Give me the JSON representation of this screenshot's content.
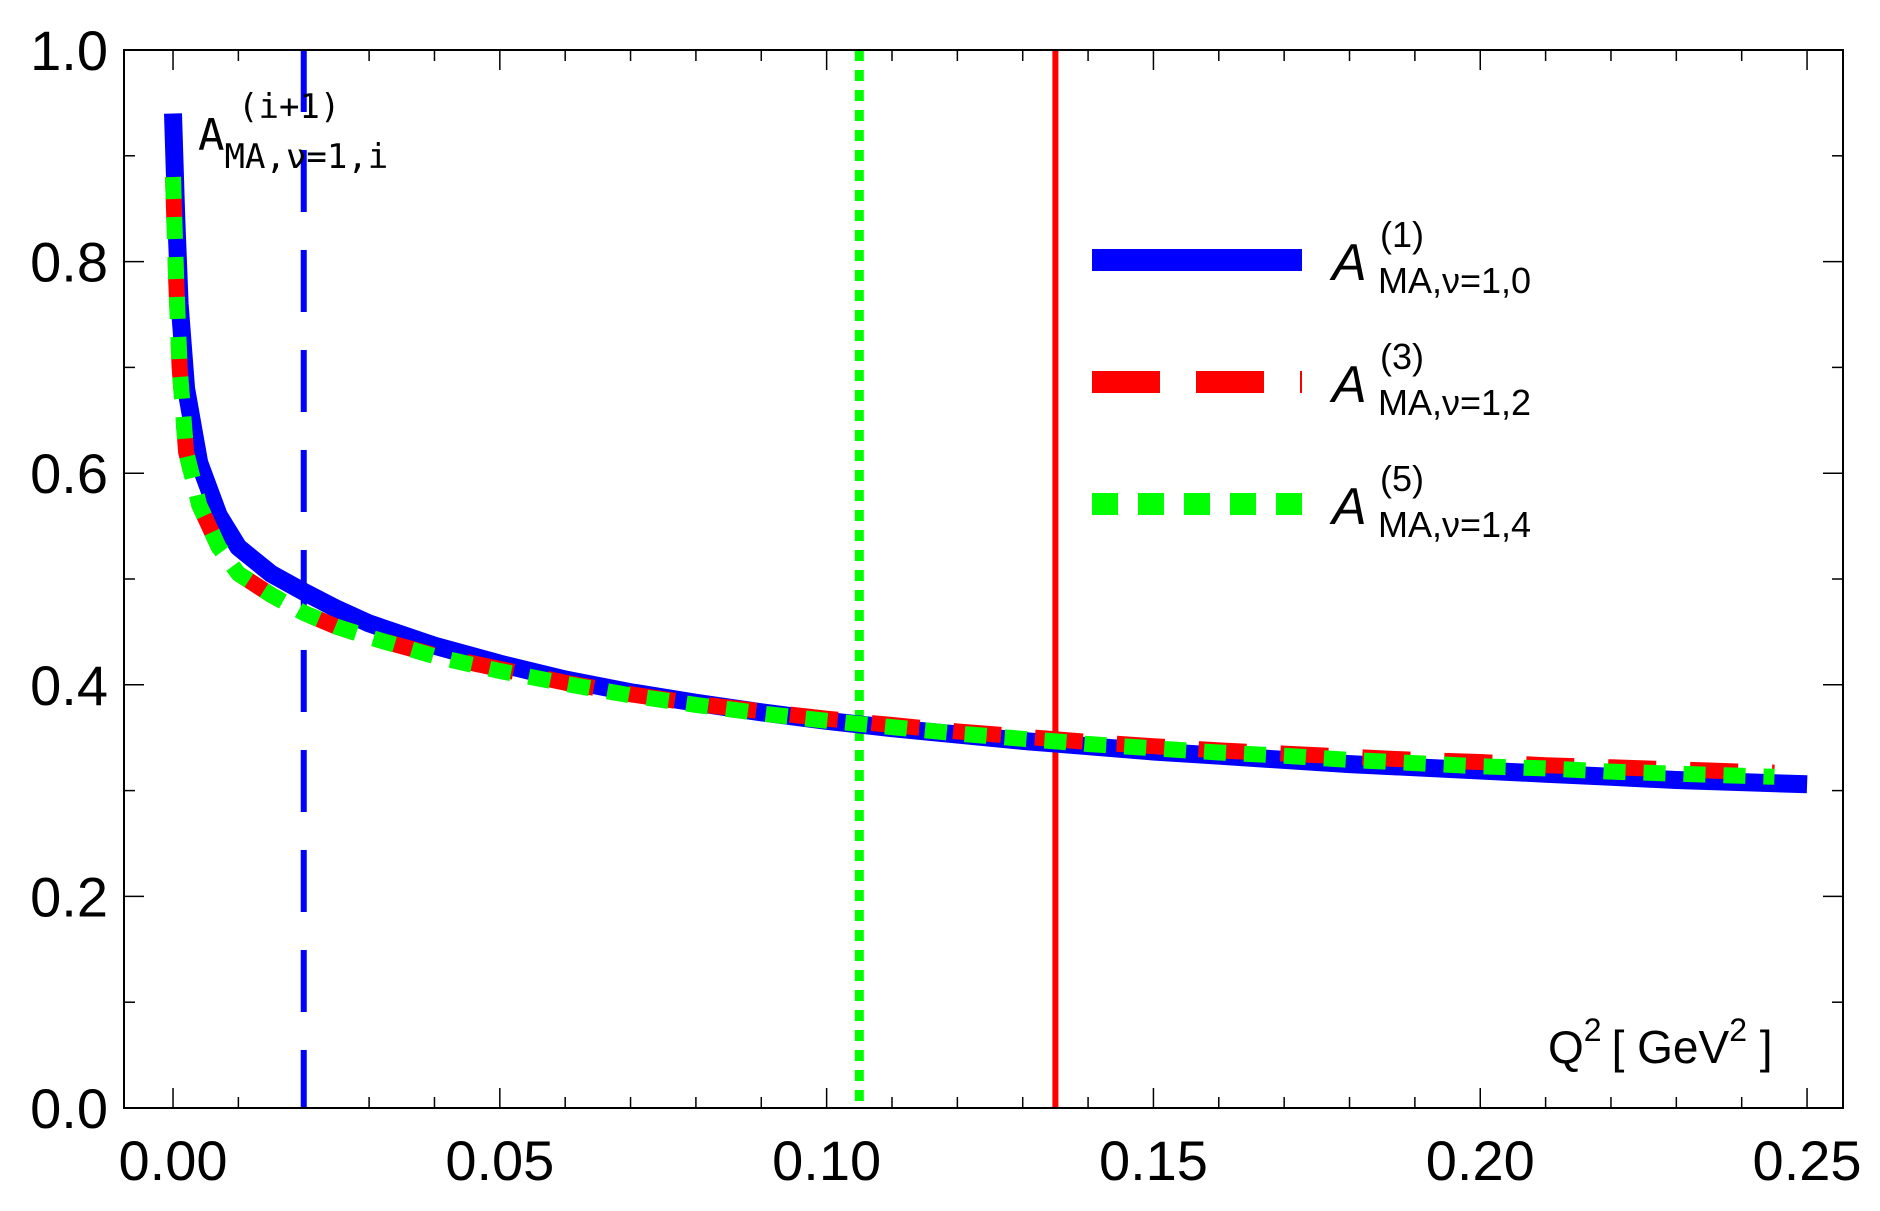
{
  "chart_data": {
    "type": "line",
    "title": "",
    "xlabel": {
      "base": "Q",
      "sup": "2",
      "unit_open": "[ GeV",
      "unit_sup": "2",
      "unit_close": " ]"
    },
    "ylabel": "",
    "corner_label": {
      "base": "A",
      "sub": "MA,ν=1,i",
      "sup": "(i+1)"
    },
    "xlim": [
      -0.0075,
      0.2555
    ],
    "ylim": [
      0.0,
      1.0
    ],
    "x_ticks": [
      "0.00",
      "0.05",
      "0.10",
      "0.15",
      "0.20",
      "0.25"
    ],
    "x_tick_values": [
      0.0,
      0.05,
      0.1,
      0.15,
      0.2,
      0.25
    ],
    "y_ticks": [
      "0.0",
      "0.2",
      "0.4",
      "0.6",
      "0.8",
      "1.0"
    ],
    "y_tick_values": [
      0.0,
      0.2,
      0.4,
      0.6,
      0.8,
      1.0
    ],
    "grid": false,
    "legend_position": "upper-right",
    "series": [
      {
        "name": "A_{MA,ν=1,0}^{(1)}",
        "legend": {
          "base": "A",
          "sup": "(1)",
          "sub": "MA,ν=1,0"
        },
        "style": "solid",
        "color": "#0000ff",
        "x": [
          0.0,
          0.0005,
          0.001,
          0.002,
          0.004,
          0.007,
          0.01,
          0.015,
          0.02,
          0.025,
          0.03,
          0.04,
          0.05,
          0.06,
          0.07,
          0.08,
          0.09,
          0.1,
          0.11,
          0.12,
          0.13,
          0.14,
          0.15,
          0.16,
          0.17,
          0.18,
          0.19,
          0.2,
          0.21,
          0.22,
          0.23,
          0.24,
          0.25
        ],
        "y": [
          0.94,
          0.84,
          0.76,
          0.68,
          0.61,
          0.56,
          0.53,
          0.505,
          0.488,
          0.472,
          0.458,
          0.437,
          0.42,
          0.405,
          0.393,
          0.383,
          0.374,
          0.366,
          0.359,
          0.353,
          0.347,
          0.342,
          0.337,
          0.333,
          0.329,
          0.325,
          0.322,
          0.319,
          0.316,
          0.313,
          0.31,
          0.308,
          0.306
        ]
      },
      {
        "name": "A_{MA,ν=1,2}^{(3)}",
        "legend": {
          "base": "A",
          "sup": "(3)",
          "sub": "MA,ν=1,2"
        },
        "style": "dashed",
        "color": "#ff0000",
        "x": [
          0.0,
          0.0005,
          0.001,
          0.002,
          0.004,
          0.007,
          0.01,
          0.015,
          0.02,
          0.025,
          0.03,
          0.04,
          0.05,
          0.06,
          0.07,
          0.08,
          0.09,
          0.1,
          0.11,
          0.12,
          0.13,
          0.14,
          0.15,
          0.16,
          0.17,
          0.18,
          0.19,
          0.2,
          0.21,
          0.22,
          0.23,
          0.24,
          0.245
        ],
        "y": [
          0.88,
          0.78,
          0.7,
          0.62,
          0.57,
          0.53,
          0.505,
          0.485,
          0.468,
          0.455,
          0.445,
          0.428,
          0.415,
          0.402,
          0.391,
          0.382,
          0.375,
          0.368,
          0.362,
          0.356,
          0.351,
          0.346,
          0.342,
          0.338,
          0.335,
          0.332,
          0.329,
          0.327,
          0.324,
          0.322,
          0.32,
          0.318,
          0.317
        ]
      },
      {
        "name": "A_{MA,ν=1,4}^{(5)}",
        "legend": {
          "base": "A",
          "sup": "(5)",
          "sub": "MA,ν=1,4"
        },
        "style": "dotted",
        "color": "#00ff00",
        "x": [
          0.0,
          0.0005,
          0.001,
          0.002,
          0.004,
          0.007,
          0.01,
          0.015,
          0.02,
          0.025,
          0.03,
          0.04,
          0.05,
          0.06,
          0.07,
          0.08,
          0.09,
          0.1,
          0.11,
          0.12,
          0.13,
          0.14,
          0.15,
          0.16,
          0.17,
          0.18,
          0.19,
          0.2,
          0.21,
          0.22,
          0.23,
          0.24,
          0.245
        ],
        "y": [
          0.88,
          0.78,
          0.7,
          0.62,
          0.57,
          0.53,
          0.505,
          0.485,
          0.468,
          0.455,
          0.445,
          0.427,
          0.413,
          0.401,
          0.39,
          0.381,
          0.373,
          0.366,
          0.36,
          0.354,
          0.349,
          0.344,
          0.34,
          0.336,
          0.333,
          0.329,
          0.326,
          0.323,
          0.321,
          0.318,
          0.316,
          0.314,
          0.313
        ]
      }
    ],
    "vertical_lines": [
      {
        "x": 0.02,
        "style": "dashed",
        "color": "#0000ff"
      },
      {
        "x": 0.105,
        "style": "dotted",
        "color": "#00ff00"
      },
      {
        "x": 0.135,
        "style": "solid",
        "color": "#ff0000"
      }
    ]
  }
}
